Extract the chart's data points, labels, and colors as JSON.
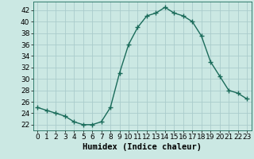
{
  "x": [
    0,
    1,
    2,
    3,
    4,
    5,
    6,
    7,
    8,
    9,
    10,
    11,
    12,
    13,
    14,
    15,
    16,
    17,
    18,
    19,
    20,
    21,
    22,
    23
  ],
  "y": [
    25.0,
    24.5,
    24.0,
    23.5,
    22.5,
    22.0,
    22.0,
    22.5,
    25.0,
    31.0,
    36.0,
    39.0,
    41.0,
    41.5,
    42.5,
    41.5,
    41.0,
    40.0,
    37.5,
    33.0,
    30.5,
    28.0,
    27.5,
    26.5
  ],
  "line_color": "#1a6b5a",
  "marker": "+",
  "marker_size": 4,
  "bg_color": "#cbe8e3",
  "grid_color": "#aacccc",
  "xlabel": "Humidex (Indice chaleur)",
  "ylim": [
    21,
    43.5
  ],
  "xlim": [
    -0.5,
    23.5
  ],
  "yticks": [
    22,
    24,
    26,
    28,
    30,
    32,
    34,
    36,
    38,
    40,
    42
  ],
  "xticks": [
    0,
    1,
    2,
    3,
    4,
    5,
    6,
    7,
    8,
    9,
    10,
    11,
    12,
    13,
    14,
    15,
    16,
    17,
    18,
    19,
    20,
    21,
    22,
    23
  ],
  "label_fontsize": 7.5,
  "tick_fontsize": 6.5,
  "linewidth": 1.0,
  "markeredgewidth": 1.0
}
